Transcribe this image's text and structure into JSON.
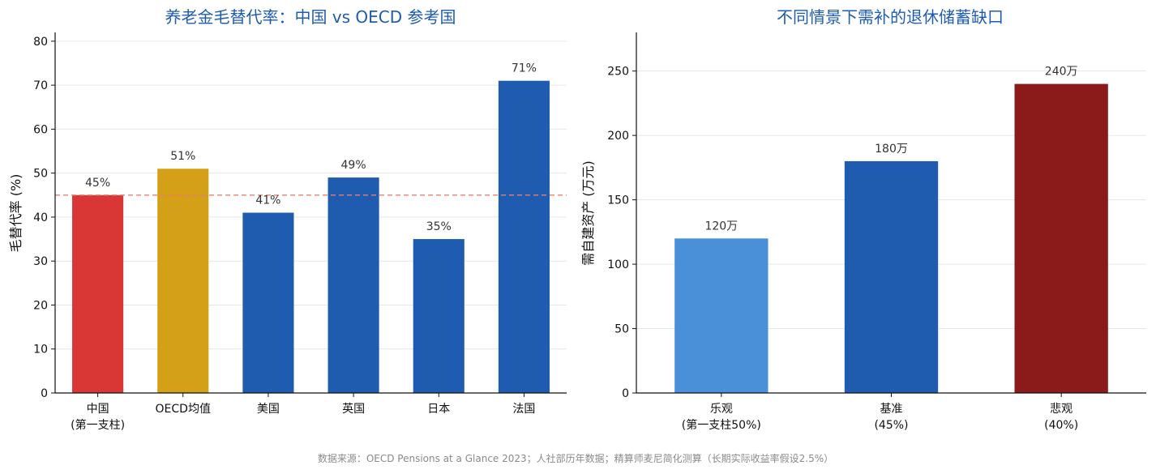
{
  "chart_data": [
    {
      "type": "bar",
      "title": "养老金毛替代率：中国 vs OECD 参考国",
      "ylabel": "毛替代率 (%)",
      "xlabel": "",
      "categories": [
        "中国\n(第一支柱)",
        "OECD均值",
        "美国",
        "英国",
        "日本",
        "法国"
      ],
      "values": [
        45,
        51,
        41,
        49,
        35,
        71
      ],
      "data_labels": [
        "45%",
        "51%",
        "41%",
        "49%",
        "35%",
        "71%"
      ],
      "colors": [
        "#d93636",
        "#d4a017",
        "#1f5cb0",
        "#1f5cb0",
        "#1f5cb0",
        "#1f5cb0"
      ],
      "ylim": [
        0,
        82
      ],
      "yticks": [
        0,
        10,
        20,
        30,
        40,
        50,
        60,
        70,
        80
      ],
      "reference_line": {
        "value": 45,
        "color": "#e8806e",
        "style": "dashed"
      },
      "grid": true
    },
    {
      "type": "bar",
      "title": "不同情景下需补的退休储蓄缺口",
      "ylabel": "需自建资产 (万元)",
      "xlabel": "",
      "categories": [
        "乐观\n(第一支柱50%)",
        "基准\n(45%)",
        "悲观\n(40%)"
      ],
      "values": [
        120,
        180,
        240
      ],
      "data_labels": [
        "120万",
        "180万",
        "240万"
      ],
      "colors": [
        "#4a90d9",
        "#1f5cb0",
        "#8b1a1a"
      ],
      "ylim": [
        0,
        280
      ],
      "yticks": [
        0,
        50,
        100,
        150,
        200,
        250
      ],
      "grid": true
    }
  ],
  "footer": {
    "source": "数据来源：OECD Pensions at a Glance 2023；人社部历年数据；精算师麦尼简化测算（长期实际收益率假设2.5%）"
  }
}
